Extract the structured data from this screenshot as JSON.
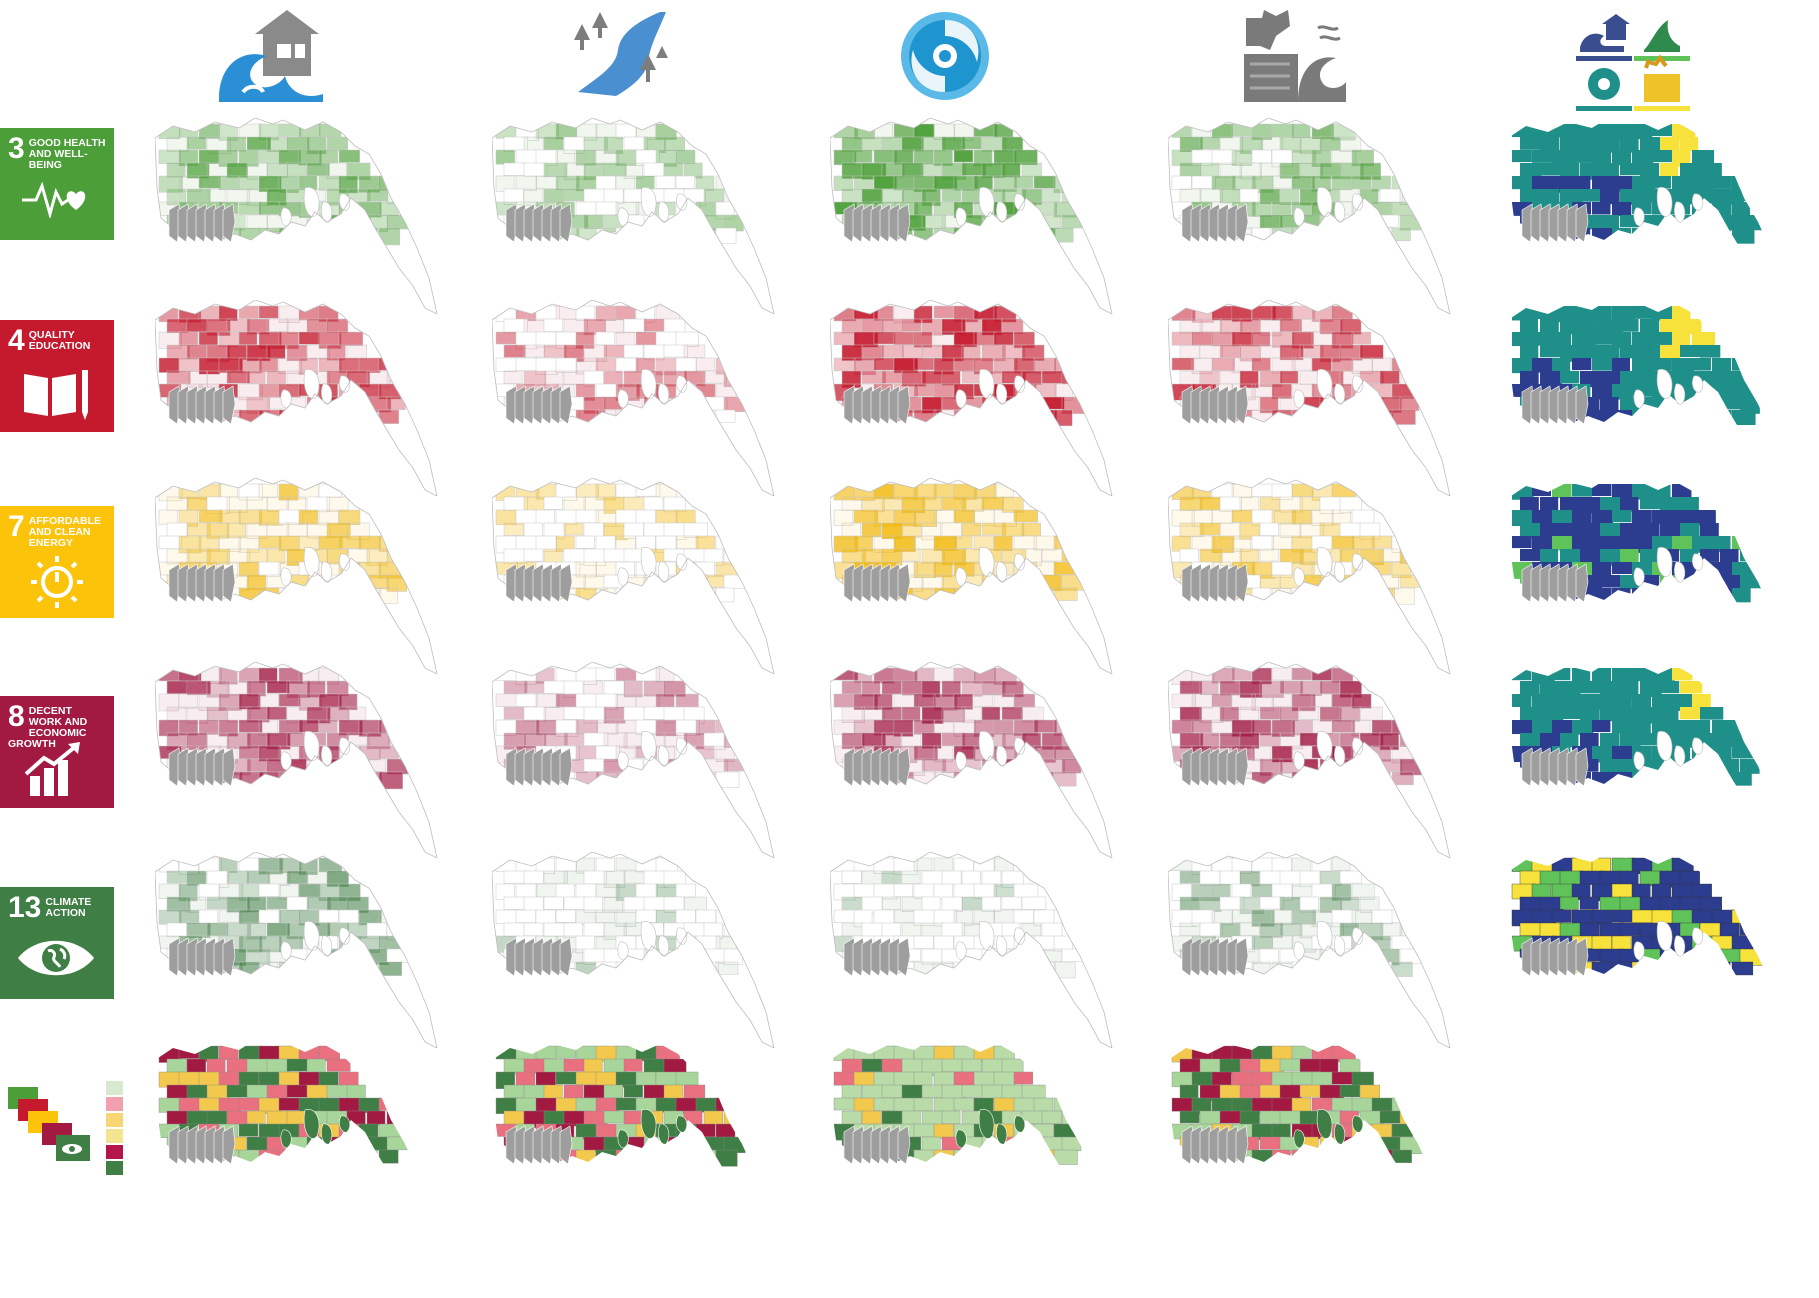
{
  "hazards": [
    {
      "id": "coastal-flood",
      "icon": "house-wave-icon"
    },
    {
      "id": "riverine-flood",
      "icon": "river-trees-icon"
    },
    {
      "id": "cyclone",
      "icon": "cyclone-icon"
    },
    {
      "id": "storm-surge-erosion",
      "icon": "erosion-surge-icon"
    },
    {
      "id": "multi-hazard",
      "icon": "multi-hazard-icon"
    }
  ],
  "sdgs": [
    {
      "id": "sdg3",
      "number": "3",
      "title": "GOOD HEALTH AND WELL-BEING",
      "color": "#4C9F38",
      "icon": "heartbeat-icon"
    },
    {
      "id": "sdg4",
      "number": "4",
      "title": "QUALITY EDUCATION",
      "color": "#C5192D",
      "icon": "book-pencil-icon"
    },
    {
      "id": "sdg7",
      "number": "7",
      "title": "AFFORDABLE AND CLEAN ENERGY",
      "color": "#FCC30B",
      "icon": "sun-power-icon"
    },
    {
      "id": "sdg8",
      "number": "8",
      "title": "DECENT WORK AND ECONOMIC GROWTH",
      "color": "#A21942",
      "icon": "growth-chart-icon"
    },
    {
      "id": "sdg13",
      "number": "13",
      "title": "CLIMATE ACTION",
      "color": "#3F7E44",
      "icon": "eye-globe-icon"
    }
  ],
  "legend_colors": [
    "#d7e9cf",
    "#f2a0ad",
    "#f7d774",
    "#f3e58f",
    "#b3174a",
    "#3f7e44"
  ],
  "multi_hazard_colors": [
    "#1f8f8a",
    "#2c3d8f",
    "#f6e23a",
    "#5fc35a"
  ],
  "sundarbans_color": "#9e9e9e"
}
